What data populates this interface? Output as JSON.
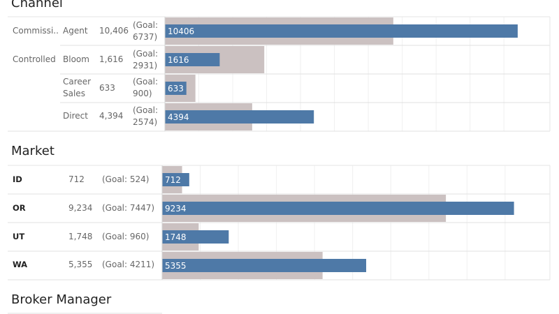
{
  "chart_data": [
    {
      "type": "bar",
      "title": "Channel",
      "rows": [
        {
          "group": "Commissi..",
          "label": "Agent",
          "value_text": "10,406",
          "goal_text": "(Goal:\n6737)",
          "value": 10406,
          "goal": 6737
        },
        {
          "group": "Controlled",
          "label": "Bloom",
          "value_text": "1,616",
          "goal_text": "(Goal:\n2931)",
          "value": 1616,
          "goal": 2931
        },
        {
          "group": "",
          "label": "Career\nSales",
          "value_text": "633",
          "goal_text": "(Goal:\n900)",
          "value": 633,
          "goal": 900
        },
        {
          "group": "",
          "label": "Direct",
          "value_text": "4,394",
          "goal_text": "(Goal:\n2574)",
          "value": 4394,
          "goal": 2574
        }
      ],
      "xlim": [
        0,
        10800
      ],
      "colors": {
        "value": "#4e79a7",
        "goal": "#cbc1c1"
      }
    },
    {
      "type": "bar",
      "title": "Market",
      "rows": [
        {
          "label": "ID",
          "value_text": "712",
          "goal_text": "(Goal: 524)",
          "value": 712,
          "goal": 524
        },
        {
          "label": "OR",
          "value_text": "9,234",
          "goal_text": "(Goal: 7447)",
          "value": 9234,
          "goal": 7447
        },
        {
          "label": "UT",
          "value_text": "1,748",
          "goal_text": "(Goal: 960)",
          "value": 1748,
          "goal": 960
        },
        {
          "label": "WA",
          "value_text": "5,355",
          "goal_text": "(Goal: 4211)",
          "value": 5355,
          "goal": 4211
        }
      ],
      "xlim": [
        0,
        9700
      ],
      "colors": {
        "value": "#4e79a7",
        "goal": "#cbc1c1"
      }
    }
  ],
  "section3": {
    "title": "Broker Manager"
  }
}
